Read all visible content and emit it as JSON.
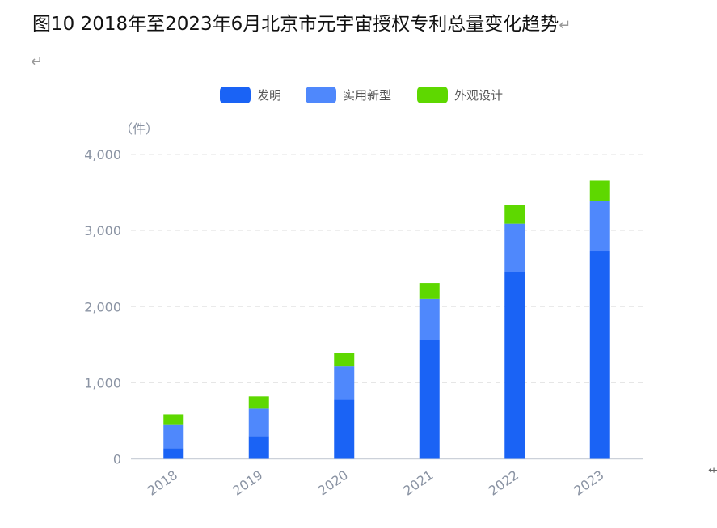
{
  "document": {
    "title": "图10 2018年至2023年6月北京市元宇宙授权专利总量变化趋势",
    "paragraph_mark": "↵"
  },
  "chart_data": {
    "type": "bar",
    "stacked": true,
    "title": "",
    "xlabel": "",
    "ylabel": "（件）",
    "ylim": [
      0,
      4000
    ],
    "yticks": [
      0,
      1000,
      2000,
      3000,
      4000
    ],
    "ytick_labels": [
      "0",
      "1,000",
      "2,000",
      "3,000",
      "4,000"
    ],
    "grid": true,
    "legend_position": "top-center",
    "categories": [
      "2018",
      "2019",
      "2020",
      "2021",
      "2022",
      "2023"
    ],
    "series": [
      {
        "name": "发明",
        "color": "#1a63f5",
        "values": [
          140,
          300,
          775,
          1565,
          2450,
          2725
        ]
      },
      {
        "name": "实用新型",
        "color": "#4f88fc",
        "values": [
          315,
          360,
          440,
          535,
          640,
          665
        ]
      },
      {
        "name": "外观设计",
        "color": "#5ed800",
        "values": [
          130,
          160,
          180,
          210,
          245,
          265
        ]
      }
    ]
  }
}
